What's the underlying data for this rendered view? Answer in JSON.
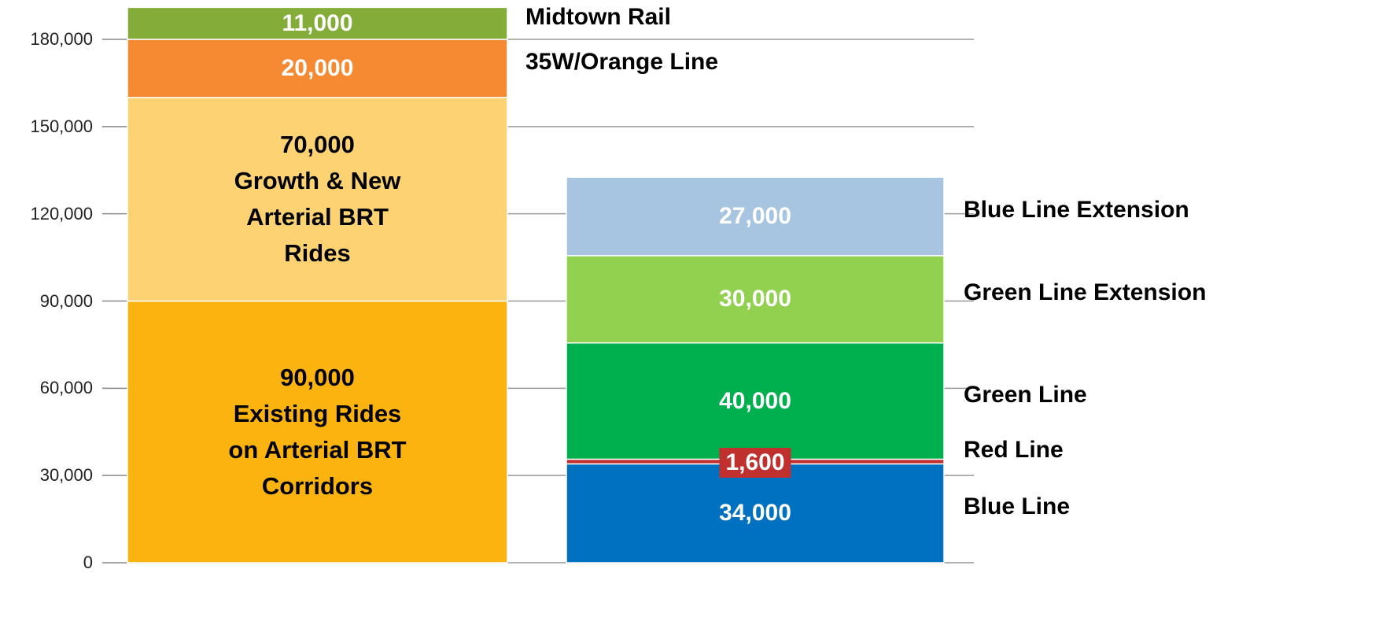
{
  "chart_data": {
    "type": "stacked_bar",
    "categories": [
      null,
      null
    ],
    "ylim": [
      0,
      190000
    ],
    "yticks": [
      0,
      {
        "value": 30000,
        "label": "30,000"
      },
      {
        "value": 60000,
        "label": "60,000"
      },
      {
        "value": 90000,
        "label": "90,000"
      },
      {
        "value": 120000,
        "label": "120,000"
      },
      {
        "value": 150000,
        "label": "150,000"
      },
      {
        "value": 180000,
        "label": "180,000"
      }
    ],
    "grid": true,
    "series": [
      {
        "name": "Existing Rides on Arterial BRT Corridors",
        "color": "#fbb30f",
        "label_color": "#000000",
        "name_inside": true,
        "values": [
          90000,
          null
        ],
        "value_labels": [
          "90,000",
          null
        ]
      },
      {
        "name": "Growth & New Arterial BRT Rides",
        "color": "#fcd272",
        "label_color": "#000000",
        "name_inside": true,
        "values": [
          70000,
          null
        ],
        "value_labels": [
          "70,000",
          null
        ]
      },
      {
        "name": "35W/Orange Line",
        "color": "#f68a33",
        "label_color": "#ffffff",
        "values": [
          20000,
          null
        ],
        "value_labels": [
          "20,000",
          null
        ]
      },
      {
        "name": "Midtown Rail",
        "color": "#84ac38",
        "label_color": "#ffffff",
        "values": [
          11000,
          null
        ],
        "value_labels": [
          "11,000",
          null
        ]
      },
      {
        "name": "Blue Line",
        "color": "#0070c0",
        "label_color": "#ffffff",
        "values": [
          null,
          34000
        ],
        "value_labels": [
          null,
          "34,000"
        ]
      },
      {
        "name": "Red Line",
        "color": "#c0302e",
        "label_color": "#ffffff",
        "label_box": true,
        "values": [
          null,
          1600
        ],
        "value_labels": [
          null,
          "1,600"
        ]
      },
      {
        "name": "Green Line",
        "color": "#00b04f",
        "label_color": "#ffffff",
        "values": [
          null,
          40000
        ],
        "value_labels": [
          null,
          "40,000"
        ]
      },
      {
        "name": "Green Line Extension",
        "color": "#92d050",
        "label_color": "#ffffff",
        "values": [
          null,
          30000
        ],
        "value_labels": [
          null,
          "30,000"
        ]
      },
      {
        "name": "Blue Line Extension",
        "color": "#a7c5e0",
        "label_color": "#ffffff",
        "values": [
          null,
          27000
        ],
        "value_labels": [
          null,
          "27,000"
        ]
      }
    ]
  }
}
